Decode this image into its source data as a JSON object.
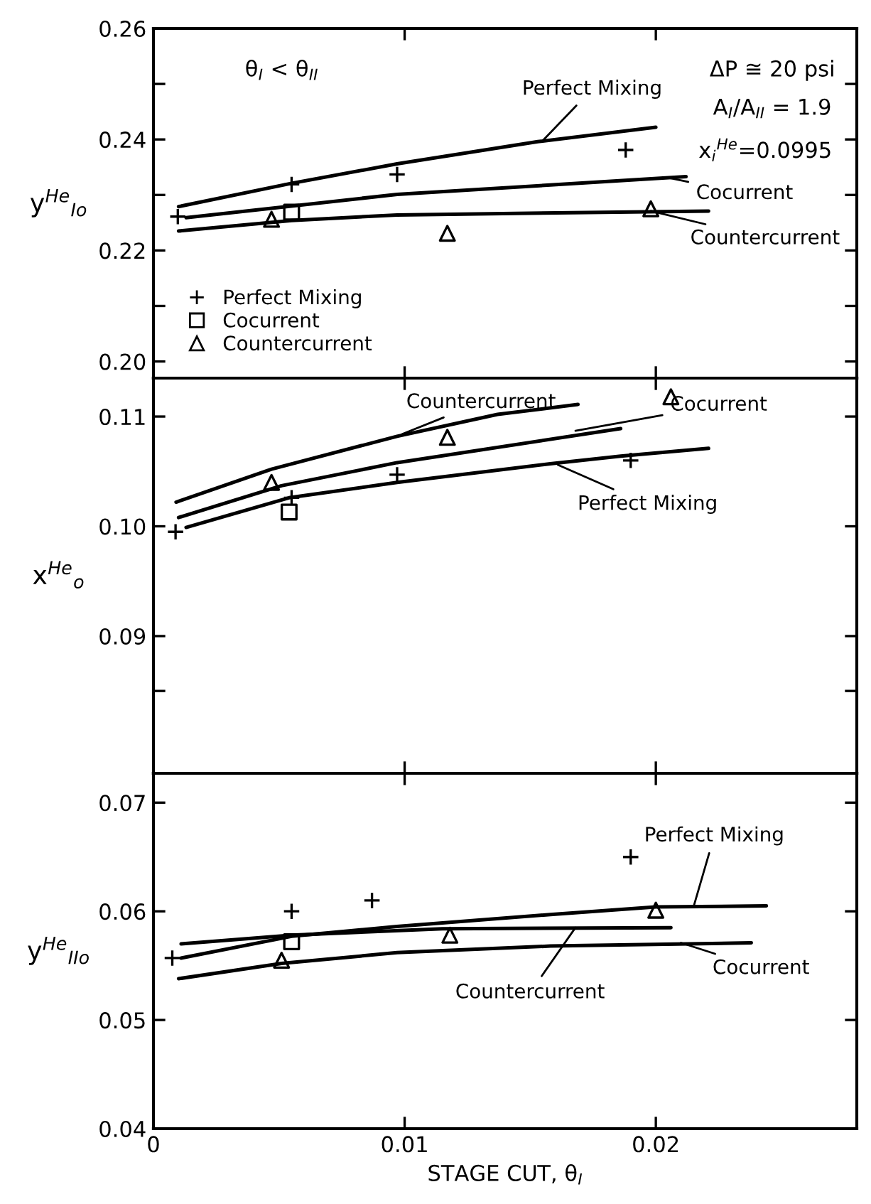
{
  "chart_data": [
    {
      "type": "line",
      "ylabel": "y$^{He}$$_{Io}$",
      "xlim": [
        0,
        0.028
      ],
      "xticks": [
        0,
        0.01,
        0.02
      ],
      "ylim": [
        0.197,
        0.26
      ],
      "yticks": [
        {
          "value": 0.2,
          "label": "0.20"
        },
        {
          "value": 0.21,
          "label": null
        },
        0.22,
        {
          "value": 0.23,
          "label": null
        },
        0.24,
        {
          "value": 0.25,
          "label": null
        },
        0.26
      ],
      "tick_labels": "y",
      "legend": "lower left",
      "grid": false,
      "annotations": [
        "θ$_{I}$ < θ$_{II}$",
        "ΔP ≅ 20 psi",
        "A$_{I}$/A$_{II}$ = 1.9",
        "x$_{i}$$^{He}$=0.0995",
        {
          "text": "Perfect Mixing",
          "x": 0.0155,
          "y": 0.2398
        },
        {
          "text": "Cocurrent",
          "x": 0.0205,
          "y": 0.2331
        },
        {
          "text": "Countercurrent",
          "x": 0.0198,
          "y": 0.2271
        }
      ],
      "series": [
        {
          "type": "line",
          "color": "#000000",
          "line_style": "solid",
          "marker": "none",
          "x": [
            0.001,
            0.0055,
            0.0097,
            0.0153,
            0.02
          ],
          "values": [
            0.2279,
            0.2321,
            0.2356,
            0.2396,
            0.2422
          ]
        },
        {
          "type": "line",
          "color": "#000000",
          "line_style": "solid",
          "marker": "none",
          "x": [
            0.0013,
            0.0097,
            0.0158,
            0.0212
          ],
          "values": [
            0.2259,
            0.2301,
            0.2318,
            0.2333
          ]
        },
        {
          "type": "line",
          "color": "#000000",
          "line_style": "solid",
          "marker": "none",
          "x": [
            0.001,
            0.0055,
            0.0097,
            0.0221
          ],
          "values": [
            0.2235,
            0.2254,
            0.2264,
            0.2271
          ]
        },
        {
          "type": "scatter",
          "name": "Perfect Mixing",
          "color": "#000000",
          "marker": "cross",
          "x": [
            0.00097,
            0.0055,
            0.0097,
            0.0188
          ],
          "values": [
            0.2261,
            0.2319,
            0.2337,
            0.2381
          ]
        },
        {
          "type": "scatter",
          "name": "Cocurrent",
          "color": "#000000",
          "marker": "square",
          "x": [
            0.0055
          ],
          "values": [
            0.2269
          ]
        },
        {
          "type": "scatter",
          "name": "Countercurrent",
          "color": "#000000",
          "marker": "triangle",
          "x": [
            0.0047,
            0.0117,
            0.0198
          ],
          "values": [
            0.2256,
            0.2231,
            0.2275
          ]
        }
      ]
    },
    {
      "type": "line",
      "ylabel": "x$^{He}$$_{o}$",
      "xlim": [
        0,
        0.028
      ],
      "xticks": [
        0,
        0.01,
        0.02
      ],
      "ylim": [
        0.0775,
        0.1135
      ],
      "yticks": [
        {
          "value": 0.085,
          "label": null
        },
        0.09,
        {
          "value": 0.1,
          "label": "0.10"
        },
        0.11
      ],
      "tick_labels": "y",
      "grid": false,
      "annotations": [
        {
          "text": "Countercurrent",
          "x": 0.0099,
          "y": 0.1084
        },
        {
          "text": "Cocurrent",
          "x": 0.0168,
          "y": 0.1087
        },
        {
          "text": "Perfect Mixing",
          "x": 0.0161,
          "y": 0.1056
        }
      ],
      "series": [
        {
          "type": "line",
          "color": "#000000",
          "line_style": "solid",
          "marker": "none",
          "x": [
            0.0009,
            0.0047,
            0.0097,
            0.0137,
            0.0169
          ],
          "values": [
            0.1022,
            0.1052,
            0.1082,
            0.1102,
            0.1111
          ]
        },
        {
          "type": "line",
          "color": "#000000",
          "line_style": "solid",
          "marker": "none",
          "x": [
            0.001,
            0.0051,
            0.0097,
            0.0186
          ],
          "values": [
            0.1008,
            0.1037,
            0.1058,
            0.1089
          ]
        },
        {
          "type": "line",
          "color": "#000000",
          "line_style": "solid",
          "marker": "none",
          "x": [
            0.0013,
            0.0054,
            0.0097,
            0.0158,
            0.0186,
            0.0221
          ],
          "values": [
            0.0999,
            0.1026,
            0.104,
            0.1057,
            0.1064,
            0.1071
          ]
        },
        {
          "type": "scatter",
          "color": "#000000",
          "marker": "cross",
          "x": [
            0.00088,
            0.0055,
            0.0097,
            0.019
          ],
          "values": [
            0.0995,
            0.1026,
            0.1047,
            0.106
          ]
        },
        {
          "type": "scatter",
          "color": "#000000",
          "marker": "square",
          "x": [
            0.0054
          ],
          "values": [
            0.1013
          ]
        },
        {
          "type": "scatter",
          "color": "#000000",
          "marker": "triangle",
          "x": [
            0.0047,
            0.0117,
            0.0206
          ],
          "values": [
            0.104,
            0.1081,
            0.1118
          ]
        }
      ]
    },
    {
      "type": "line",
      "ylabel": "y$^{He}$$_{IIo}$",
      "xlabel": "STAGE CUT, θ$_{I}$",
      "xlim": [
        0,
        0.028
      ],
      "xticks": [
        0,
        0.01,
        0.02
      ],
      "ylim": [
        0.04,
        0.0727
      ],
      "yticks": [
        0.04,
        0.05,
        0.06,
        0.07
      ],
      "grid": false,
      "annotations": [
        {
          "text": "Perfect Mixing",
          "x": 0.0215,
          "y": 0.0604
        },
        {
          "text": "Countercurrent",
          "x": 0.0168,
          "y": 0.0585
        },
        {
          "text": "Cocurrent",
          "x": 0.021,
          "y": 0.0571
        }
      ],
      "series": [
        {
          "type": "line",
          "color": "#000000",
          "line_style": "solid",
          "marker": "none",
          "x": [
            0.0011,
            0.0055,
            0.0097,
            0.0158,
            0.02,
            0.0244
          ],
          "values": [
            0.0557,
            0.0577,
            0.0586,
            0.0597,
            0.0604,
            0.0605
          ]
        },
        {
          "type": "line",
          "color": "#000000",
          "line_style": "solid",
          "marker": "none",
          "x": [
            0.0011,
            0.0055,
            0.0115,
            0.0206
          ],
          "values": [
            0.057,
            0.0578,
            0.0584,
            0.0585
          ]
        },
        {
          "type": "line",
          "color": "#000000",
          "line_style": "solid",
          "marker": "none",
          "x": [
            0.001,
            0.0051,
            0.0097,
            0.0158,
            0.0238
          ],
          "values": [
            0.0538,
            0.0552,
            0.0562,
            0.0568,
            0.0571
          ]
        },
        {
          "type": "scatter",
          "color": "#000000",
          "marker": "cross",
          "x": [
            0.00075,
            0.0055,
            0.0087,
            0.019
          ],
          "values": [
            0.0557,
            0.06,
            0.061,
            0.065
          ]
        },
        {
          "type": "scatter",
          "color": "#000000",
          "marker": "square",
          "x": [
            0.0055
          ],
          "values": [
            0.0572
          ]
        },
        {
          "type": "scatter",
          "color": "#000000",
          "marker": "triangle",
          "x": [
            0.0051,
            0.0118,
            0.02
          ],
          "values": [
            0.0555,
            0.0578,
            0.0601
          ]
        }
      ]
    }
  ]
}
